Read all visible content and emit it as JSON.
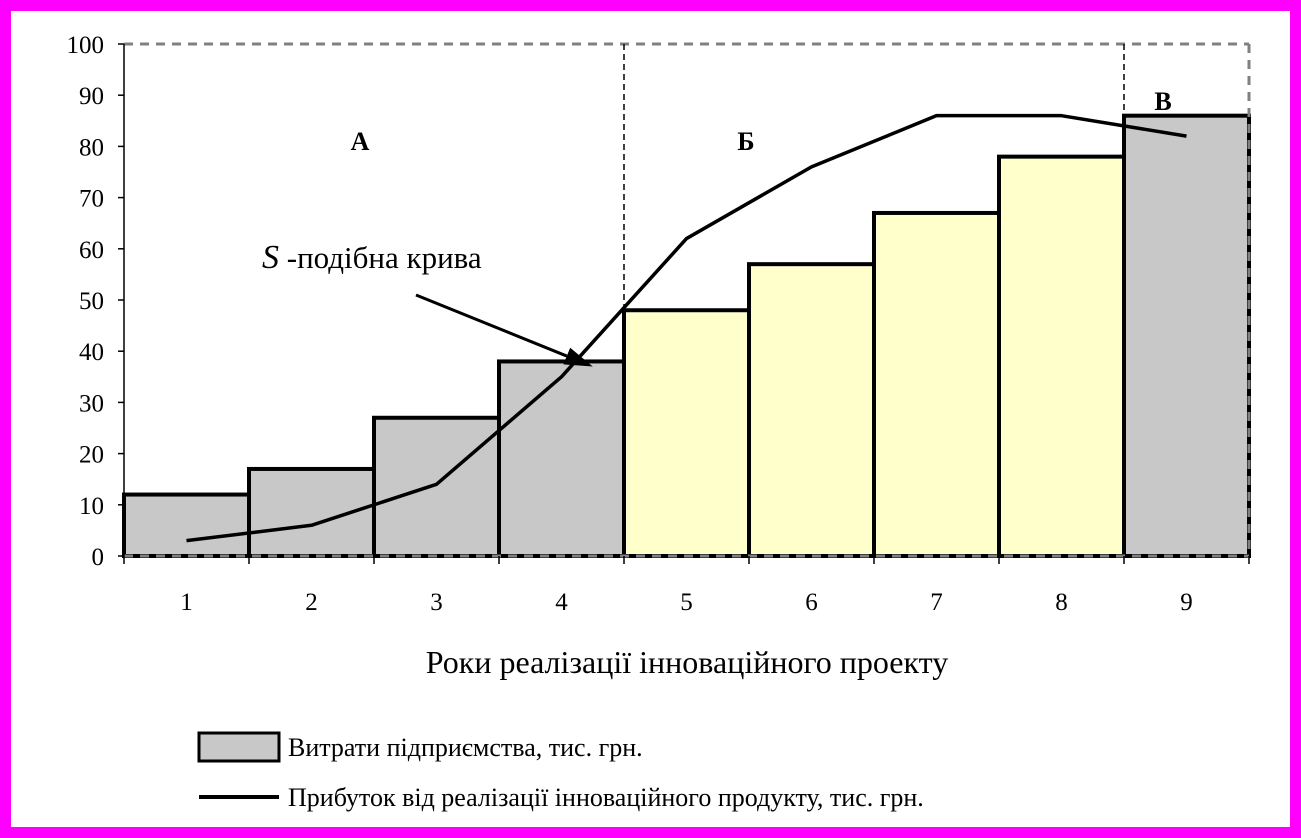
{
  "chart_data": {
    "type": "bar",
    "categories": [
      "1",
      "2",
      "3",
      "4",
      "5",
      "6",
      "7",
      "8",
      "9"
    ],
    "series": [
      {
        "name": "Витрати підприємства, тис. грн.",
        "kind": "bar",
        "values": [
          12,
          17,
          27,
          38,
          48,
          57,
          67,
          78,
          86
        ]
      },
      {
        "name": "Прибуток від реалізації інноваційного продукту, тис. грн.",
        "kind": "line",
        "values": [
          3,
          6,
          14,
          35,
          62,
          76,
          86,
          86,
          82
        ]
      }
    ],
    "bar_colors": [
      "#C8C8C8",
      "#C8C8C8",
      "#C8C8C8",
      "#C8C8C8",
      "#FFFFCC",
      "#FFFFCC",
      "#FFFFCC",
      "#FFFFCC",
      "#C8C8C8"
    ],
    "xlabel": "Роки реалізації інноваційного проекту",
    "ylabel": "",
    "ylim": [
      0,
      100
    ],
    "yticks": [
      0,
      10,
      20,
      30,
      40,
      50,
      60,
      70,
      80,
      90,
      100
    ],
    "zones": [
      {
        "label": "А",
        "from": 0.5,
        "to": 4.5
      },
      {
        "label": "Б",
        "from": 4.5,
        "to": 8.5
      },
      {
        "label": "В",
        "from": 8.5,
        "to": 9.5
      }
    ],
    "annotation": {
      "italic_part": "S",
      "text": " -подібна крива"
    },
    "legend_placement": "bottom",
    "grid": false
  },
  "colors": {
    "frame": "#FF00FF",
    "background": "#FFFFFF",
    "gray_bar": "#C8C8C8",
    "yellow_bar": "#FFFFCC",
    "line": "#000000"
  }
}
